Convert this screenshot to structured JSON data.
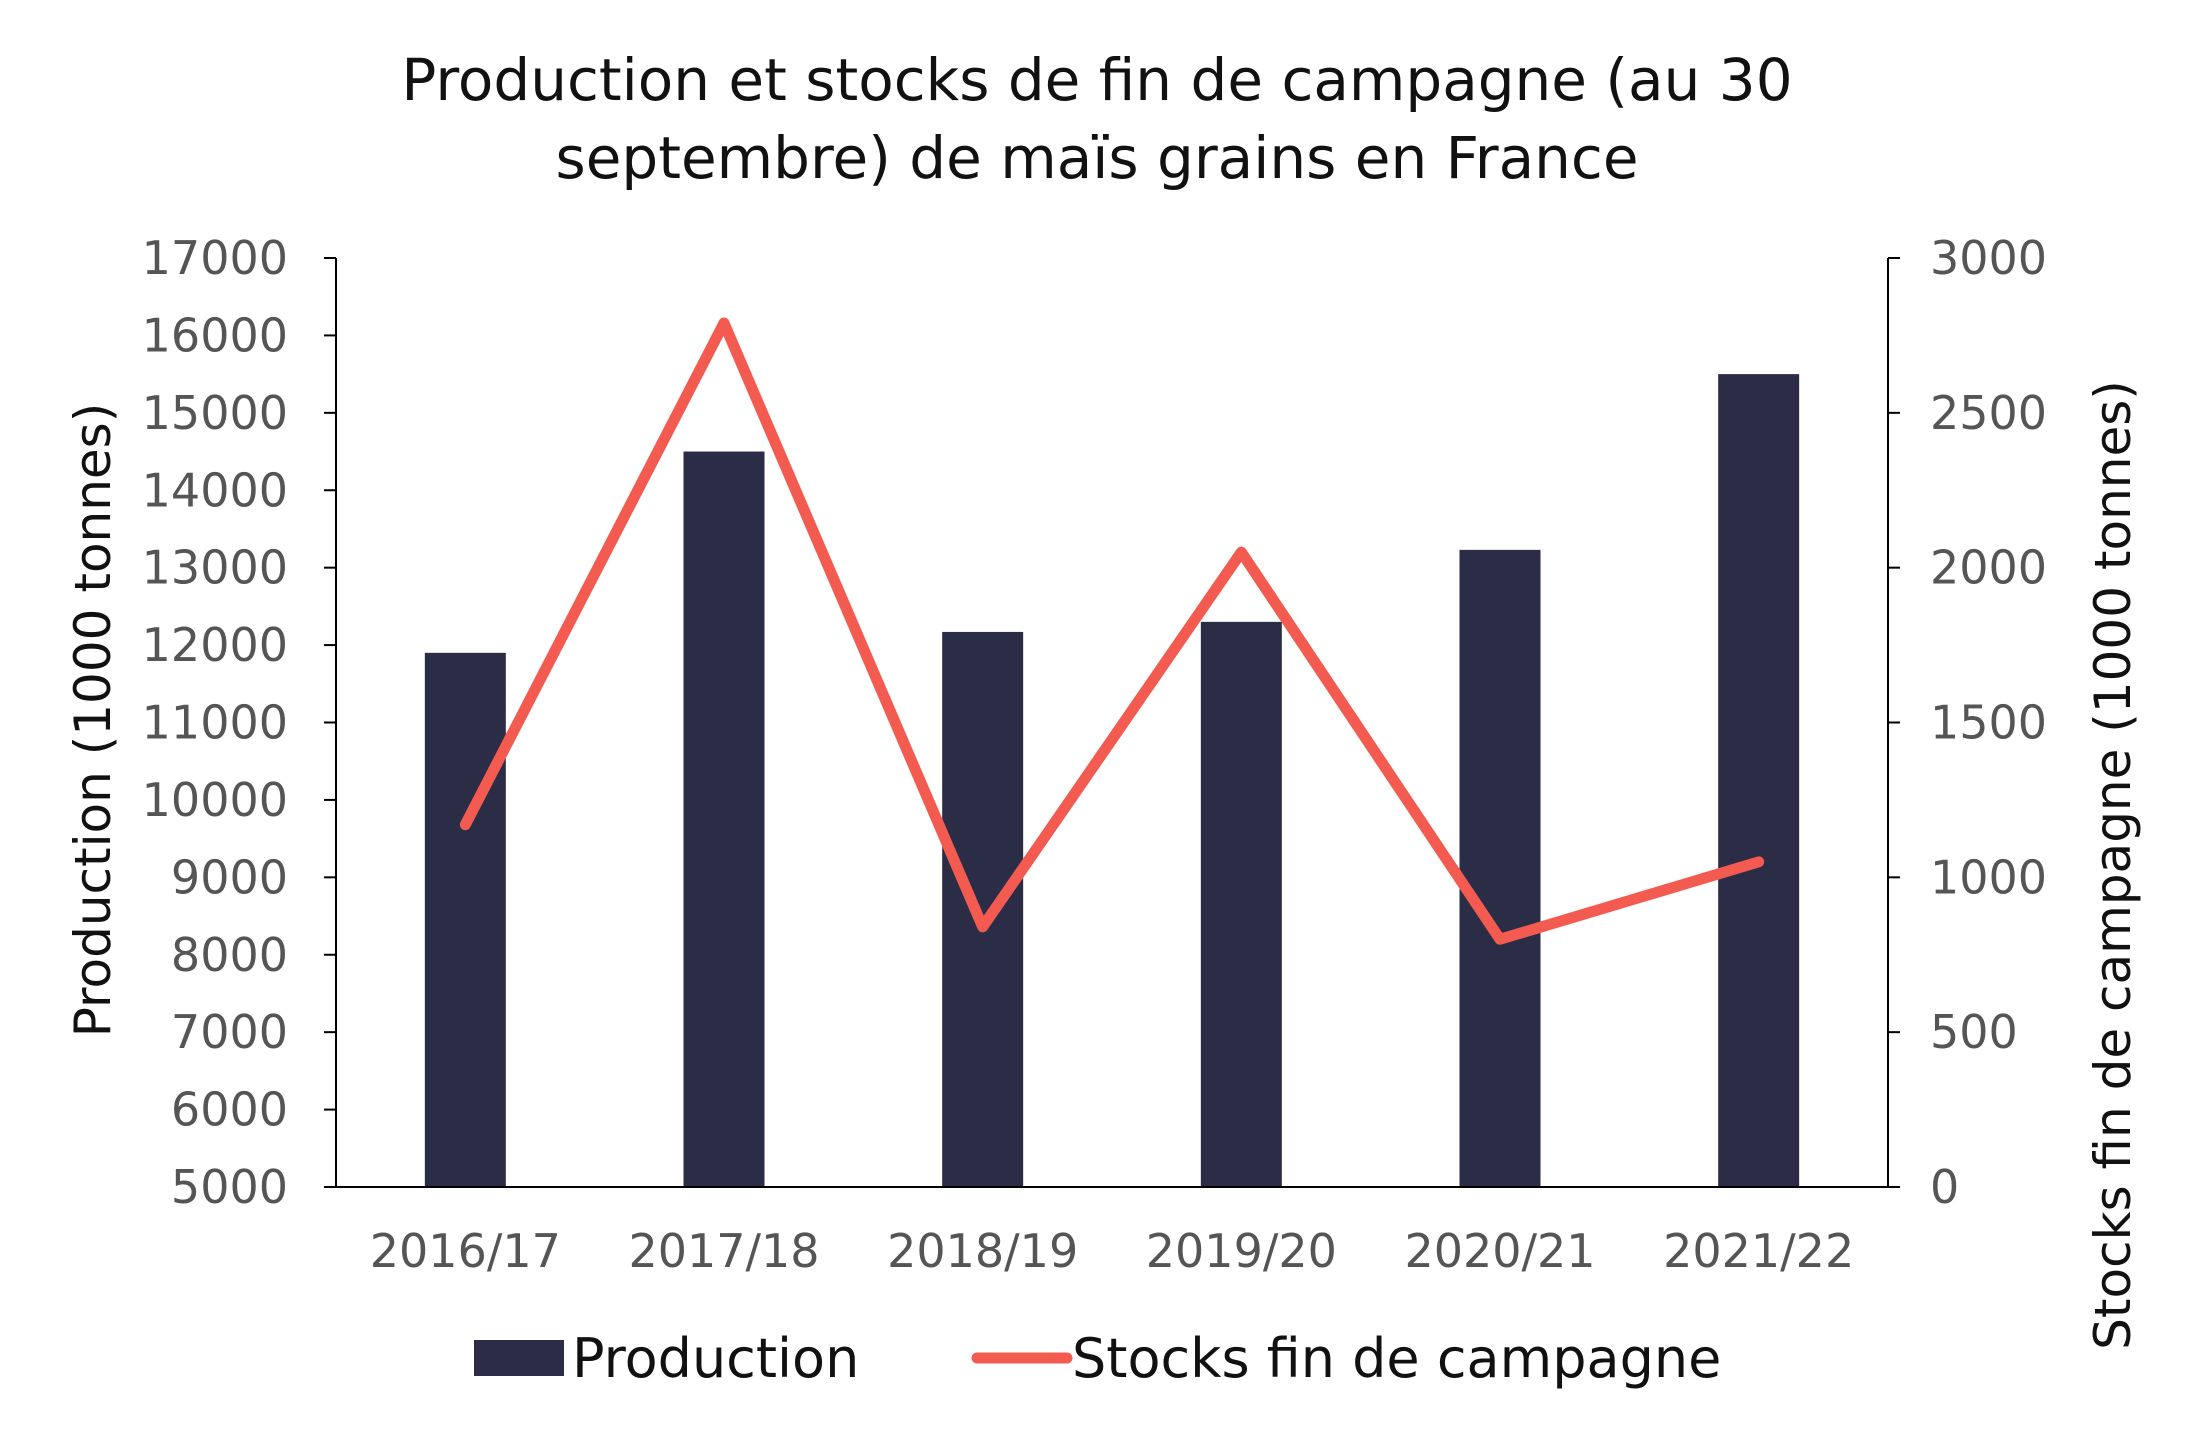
{
  "chart_data": {
    "type": "bar",
    "title": [
      "Production et stocks de fin de campagne (au 30",
      "septembre) de maïs grains en France"
    ],
    "categories": [
      "2016/17",
      "2017/18",
      "2018/19",
      "2019/20",
      "2020/21",
      "2021/22"
    ],
    "series": [
      {
        "name": "Production",
        "type": "bar",
        "axis": "left",
        "color": "#2b2d47",
        "values": [
          11900,
          14500,
          12170,
          12300,
          13230,
          15500
        ]
      },
      {
        "name": "Stocks fin de campagne",
        "type": "line",
        "axis": "right",
        "color": "#f45b50",
        "values": [
          1170,
          2790,
          840,
          2050,
          800,
          1050
        ]
      }
    ],
    "ylabel_left": "Production (1000 tonnes)",
    "ylabel_right": "Stocks  fin de campagne (1000 tonnes)",
    "ylim_left": [
      5000,
      17000
    ],
    "ylim_right": [
      0,
      3000
    ],
    "yticks_left": [
      "5000",
      "6000",
      "7000",
      "8000",
      "9000",
      "10000",
      "11000",
      "12000",
      "13000",
      "14000",
      "15000",
      "16000",
      "17000"
    ],
    "yticks_right": [
      "0",
      "500",
      "1000",
      "1500",
      "2000",
      "2500",
      "3000"
    ],
    "grid": false,
    "legend_position": "bottom"
  }
}
